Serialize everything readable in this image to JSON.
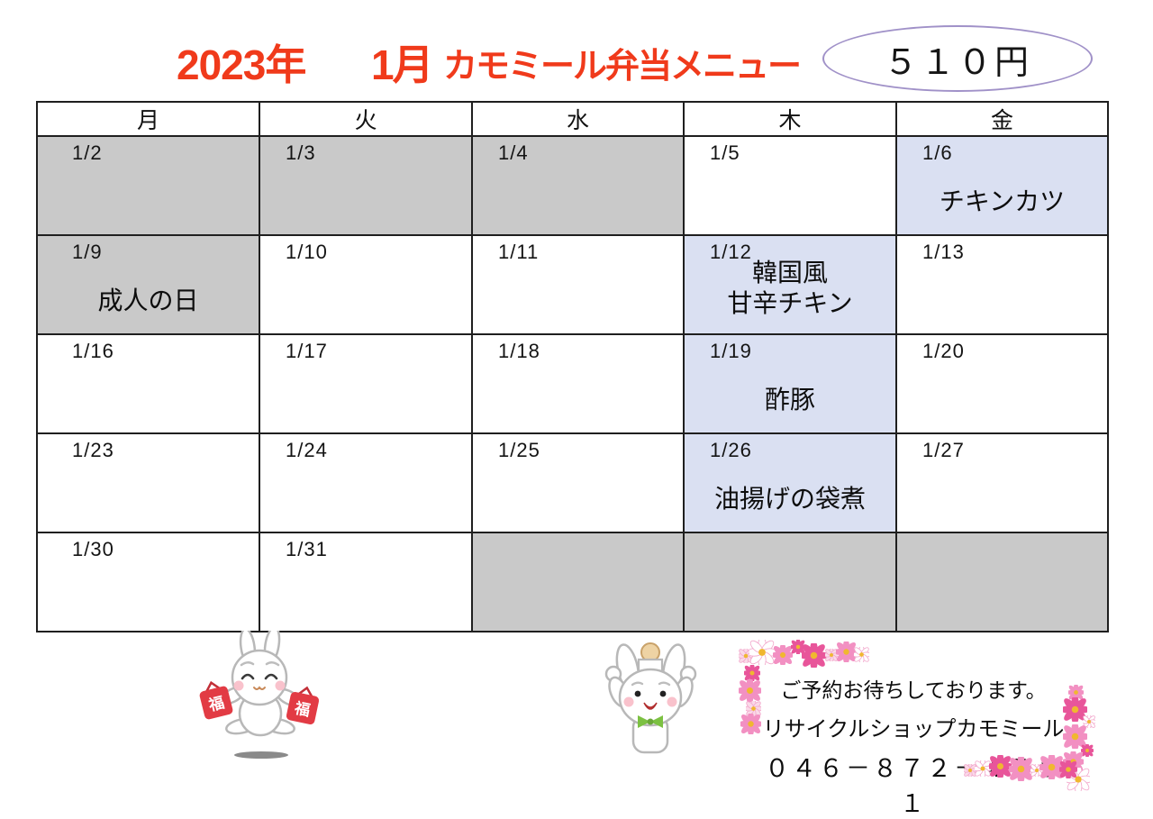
{
  "title": {
    "year": "2023年",
    "month": "1月",
    "name": "カモミール弁当メニュー"
  },
  "price": {
    "label": "５１０円"
  },
  "calendar": {
    "weekdays": [
      "月",
      "火",
      "水",
      "木",
      "金"
    ],
    "rows": [
      [
        {
          "date": "1/2",
          "bg": "gray",
          "menu": []
        },
        {
          "date": "1/3",
          "bg": "gray",
          "menu": []
        },
        {
          "date": "1/4",
          "bg": "gray",
          "menu": []
        },
        {
          "date": "1/5",
          "bg": "white",
          "menu": []
        },
        {
          "date": "1/6",
          "bg": "blue",
          "menu": [
            "チキンカツ"
          ]
        }
      ],
      [
        {
          "date": "1/9",
          "bg": "gray",
          "menu": [
            "成人の日"
          ]
        },
        {
          "date": "1/10",
          "bg": "white",
          "menu": []
        },
        {
          "date": "1/11",
          "bg": "white",
          "menu": []
        },
        {
          "date": "1/12",
          "bg": "blue",
          "menu": [
            "韓国風",
            "甘辛チキン"
          ]
        },
        {
          "date": "1/13",
          "bg": "white",
          "menu": []
        }
      ],
      [
        {
          "date": "1/16",
          "bg": "white",
          "menu": []
        },
        {
          "date": "1/17",
          "bg": "white",
          "menu": []
        },
        {
          "date": "1/18",
          "bg": "white",
          "menu": []
        },
        {
          "date": "1/19",
          "bg": "blue",
          "menu": [
            "酢豚"
          ]
        },
        {
          "date": "1/20",
          "bg": "white",
          "menu": []
        }
      ],
      [
        {
          "date": "1/23",
          "bg": "white",
          "menu": []
        },
        {
          "date": "1/24",
          "bg": "white",
          "menu": []
        },
        {
          "date": "1/25",
          "bg": "white",
          "menu": []
        },
        {
          "date": "1/26",
          "bg": "blue",
          "menu": [
            "油揚げの袋煮"
          ]
        },
        {
          "date": "1/27",
          "bg": "white",
          "menu": []
        }
      ],
      [
        {
          "date": "1/30",
          "bg": "white",
          "menu": []
        },
        {
          "date": "1/31",
          "bg": "white",
          "menu": []
        },
        {
          "date": "",
          "bg": "gray",
          "menu": []
        },
        {
          "date": "",
          "bg": "gray",
          "menu": []
        },
        {
          "date": "",
          "bg": "gray",
          "menu": []
        }
      ]
    ]
  },
  "contact": {
    "line1": "ご予約お待ちしております。",
    "line2": "リサイクルショップカモミール",
    "line3": "０４６－８７２－４５５１"
  },
  "illustrations": {
    "lucky_bag_label": "福"
  },
  "colors": {
    "title_red": "#f03a1b",
    "cell_gray": "#c9c9c9",
    "cell_blue": "#dae0f2",
    "oval_purple": "#a091c8",
    "bag_red": "#e23b44",
    "bow_green": "#7cc142",
    "flower_deep_pink": "#e8559a",
    "flower_pink": "#f290c2",
    "flower_pale_pink": "#fad9e8",
    "flower_white": "#ffffff",
    "flower_center_yellow": "#f0b730"
  }
}
